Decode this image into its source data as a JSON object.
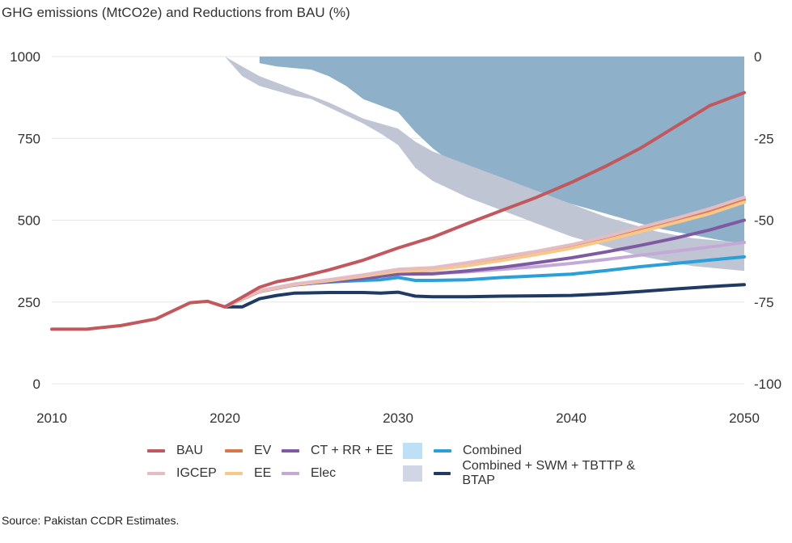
{
  "title": "GHG emissions (MtCO2e) and Reductions from BAU (%)",
  "source": "Source: Pakistan CCDR Estimates.",
  "chart_data": {
    "type": "line",
    "title": "GHG emissions (MtCO2e) and Reductions from BAU (%)",
    "xlim": [
      2010,
      2050
    ],
    "x_ticks": [
      "2010",
      "2020",
      "2030",
      "2040",
      "2050"
    ],
    "ylim": [
      0,
      1000
    ],
    "y_ticks": [
      "0",
      "250",
      "500",
      "750",
      "1000"
    ],
    "y2lim": [
      -100,
      0
    ],
    "y2_ticks": [
      "0",
      "-25",
      "-50",
      "-75",
      "-100"
    ],
    "grid": "horizontal",
    "legend_position": "bottom",
    "series": [
      {
        "name": "BAU",
        "color": "#c0585e",
        "x": [
          2010,
          2012,
          2014,
          2016,
          2018,
          2019,
          2020,
          2021,
          2022,
          2023,
          2024,
          2026,
          2028,
          2030,
          2032,
          2034,
          2036,
          2038,
          2040,
          2042,
          2044,
          2046,
          2048,
          2050
        ],
        "y": [
          167,
          167,
          178,
          198,
          248,
          252,
          235,
          265,
          295,
          312,
          322,
          348,
          378,
          415,
          448,
          490,
          530,
          570,
          615,
          665,
          720,
          785,
          850,
          890
        ]
      },
      {
        "name": "IGCEP",
        "color": "#e5bcc2",
        "x": [
          2020,
          2022,
          2024,
          2026,
          2028,
          2030,
          2032,
          2034,
          2036,
          2038,
          2040,
          2042,
          2044,
          2046,
          2048,
          2050
        ],
        "y": [
          235,
          285,
          305,
          318,
          333,
          350,
          355,
          370,
          388,
          405,
          425,
          450,
          478,
          505,
          535,
          570
        ]
      },
      {
        "name": "EV",
        "color": "#d9774a",
        "x": [
          2020,
          2022,
          2024,
          2026,
          2028,
          2030,
          2032,
          2034,
          2036,
          2038,
          2040,
          2042,
          2044,
          2046,
          2048,
          2050
        ],
        "y": [
          235,
          283,
          303,
          316,
          330,
          346,
          350,
          364,
          380,
          398,
          418,
          442,
          470,
          498,
          528,
          562
        ]
      },
      {
        "name": "EE",
        "color": "#f7c88a",
        "x": [
          2020,
          2022,
          2024,
          2026,
          2028,
          2030,
          2032,
          2034,
          2036,
          2038,
          2040,
          2042,
          2044,
          2046,
          2048,
          2050
        ],
        "y": [
          235,
          283,
          303,
          315,
          329,
          344,
          348,
          361,
          377,
          395,
          414,
          438,
          465,
          492,
          520,
          555
        ]
      },
      {
        "name": "CT + RR + EE",
        "color": "#7f5aa2",
        "x": [
          2020,
          2022,
          2024,
          2026,
          2028,
          2030,
          2032,
          2034,
          2036,
          2038,
          2040,
          2042,
          2044,
          2046,
          2048,
          2050
        ],
        "y": [
          235,
          282,
          302,
          312,
          322,
          335,
          336,
          345,
          356,
          370,
          385,
          403,
          423,
          445,
          470,
          500
        ]
      },
      {
        "name": "Elec",
        "color": "#c4a9d6",
        "x": [
          2020,
          2022,
          2024,
          2026,
          2028,
          2030,
          2032,
          2034,
          2036,
          2038,
          2040,
          2042,
          2044,
          2046,
          2048,
          2050
        ],
        "y": [
          235,
          282,
          302,
          314,
          326,
          338,
          337,
          342,
          350,
          358,
          368,
          380,
          393,
          405,
          418,
          432
        ]
      },
      {
        "name": "Combined",
        "color": "#2a9fd8",
        "x": [
          2020,
          2022,
          2024,
          2026,
          2028,
          2029,
          2030,
          2031,
          2032,
          2034,
          2036,
          2038,
          2040,
          2042,
          2044,
          2046,
          2048,
          2050
        ],
        "y": [
          235,
          283,
          303,
          311,
          316,
          318,
          325,
          316,
          316,
          318,
          325,
          330,
          335,
          346,
          358,
          368,
          378,
          388
        ]
      },
      {
        "name": "Combined + SWM + TBTTP & BTAP",
        "color": "#1f3a63",
        "x": [
          2020,
          2021,
          2022,
          2023,
          2024,
          2026,
          2028,
          2029,
          2030,
          2031,
          2032,
          2034,
          2036,
          2038,
          2040,
          2042,
          2044,
          2046,
          2048,
          2050
        ],
        "y": [
          235,
          235,
          260,
          270,
          277,
          279,
          279,
          277,
          280,
          268,
          266,
          266,
          268,
          269,
          270,
          275,
          282,
          290,
          297,
          303
        ]
      }
    ],
    "areas": [
      {
        "name": "Combined",
        "axis": "right",
        "color": "#8fb0c9",
        "x": [
          2022,
          2023,
          2024,
          2025,
          2026,
          2027,
          2028,
          2029,
          2030,
          2031,
          2032,
          2033,
          2034,
          2035,
          2036,
          2037,
          2038,
          2039,
          2040,
          2041,
          2042,
          2043,
          2044,
          2045,
          2046,
          2047,
          2048,
          2049,
          2050
        ],
        "upper": [
          0,
          0,
          0,
          0,
          0,
          0,
          0,
          0,
          0,
          0,
          0,
          0,
          0,
          0,
          0,
          0,
          0,
          0,
          0,
          0,
          0,
          0,
          0,
          0,
          0,
          0,
          0,
          0,
          0
        ],
        "lower": [
          -2,
          -3,
          -3.5,
          -4,
          -6,
          -9,
          -13,
          -15,
          -17,
          -23,
          -28,
          -32,
          -35,
          -37,
          -39,
          -40.5,
          -42,
          -43.5,
          -45,
          -46.5,
          -48,
          -49.5,
          -51,
          -52.5,
          -53.5,
          -54.5,
          -55.5,
          -56.5,
          -57
        ]
      },
      {
        "name": "Combined + SWM + TBTTP & BTAP",
        "axis": "right",
        "color": "#bfc5d3",
        "x": [
          2020,
          2021,
          2022,
          2023,
          2024,
          2025,
          2026,
          2027,
          2028,
          2029,
          2030,
          2031,
          2032,
          2033,
          2034,
          2035,
          2036,
          2037,
          2038,
          2039,
          2040,
          2041,
          2042,
          2043,
          2044,
          2045,
          2046,
          2047,
          2048,
          2049,
          2050
        ],
        "upper": [
          0,
          -3,
          -6,
          -8,
          -10,
          -12,
          -14,
          -16.5,
          -19,
          -20.5,
          -22,
          -26,
          -29,
          -31,
          -33,
          -35,
          -37,
          -39,
          -41,
          -43,
          -45,
          -47,
          -49,
          -50.5,
          -52,
          -53.5,
          -54.5,
          -55.5,
          -56,
          -56.5,
          -57
        ],
        "lower": [
          0,
          -6,
          -9,
          -10.5,
          -12,
          -13,
          -15.5,
          -18,
          -20.5,
          -23.5,
          -27,
          -34,
          -38,
          -40.5,
          -43,
          -45,
          -47,
          -49,
          -51,
          -53,
          -55,
          -56.5,
          -58,
          -59.5,
          -61,
          -62,
          -63,
          -64,
          -64.5,
          -65,
          -65.5
        ]
      }
    ]
  },
  "legend": {
    "items": [
      {
        "label": "BAU",
        "kind": "line",
        "color": "#c0585e",
        "col": 0,
        "row": 0
      },
      {
        "label": "IGCEP",
        "kind": "line",
        "color": "#e5bcc2",
        "col": 0,
        "row": 1
      },
      {
        "label": "EV",
        "kind": "line",
        "color": "#d9774a",
        "col": 1,
        "row": 0
      },
      {
        "label": "EE",
        "kind": "line",
        "color": "#f7c88a",
        "col": 1,
        "row": 1
      },
      {
        "label": "CT + RR + EE",
        "kind": "line",
        "color": "#7f5aa2",
        "col": 2,
        "row": 0
      },
      {
        "label": "Elec",
        "kind": "line",
        "color": "#c4a9d6",
        "col": 2,
        "row": 1
      },
      {
        "label": "Combined",
        "kind": "line",
        "color": "#2a9fd8",
        "col": 3,
        "row": 0
      },
      {
        "label": "Combined + SWM + TBTTP & BTAP",
        "kind": "line",
        "color": "#1f3a63",
        "col": 3,
        "row": 1
      },
      {
        "label": "",
        "kind": "box",
        "color": "#bde0f4",
        "col": 4,
        "row": 0
      },
      {
        "label": "",
        "kind": "box",
        "color": "#d1d6e4",
        "col": 4,
        "row": 1
      }
    ]
  }
}
